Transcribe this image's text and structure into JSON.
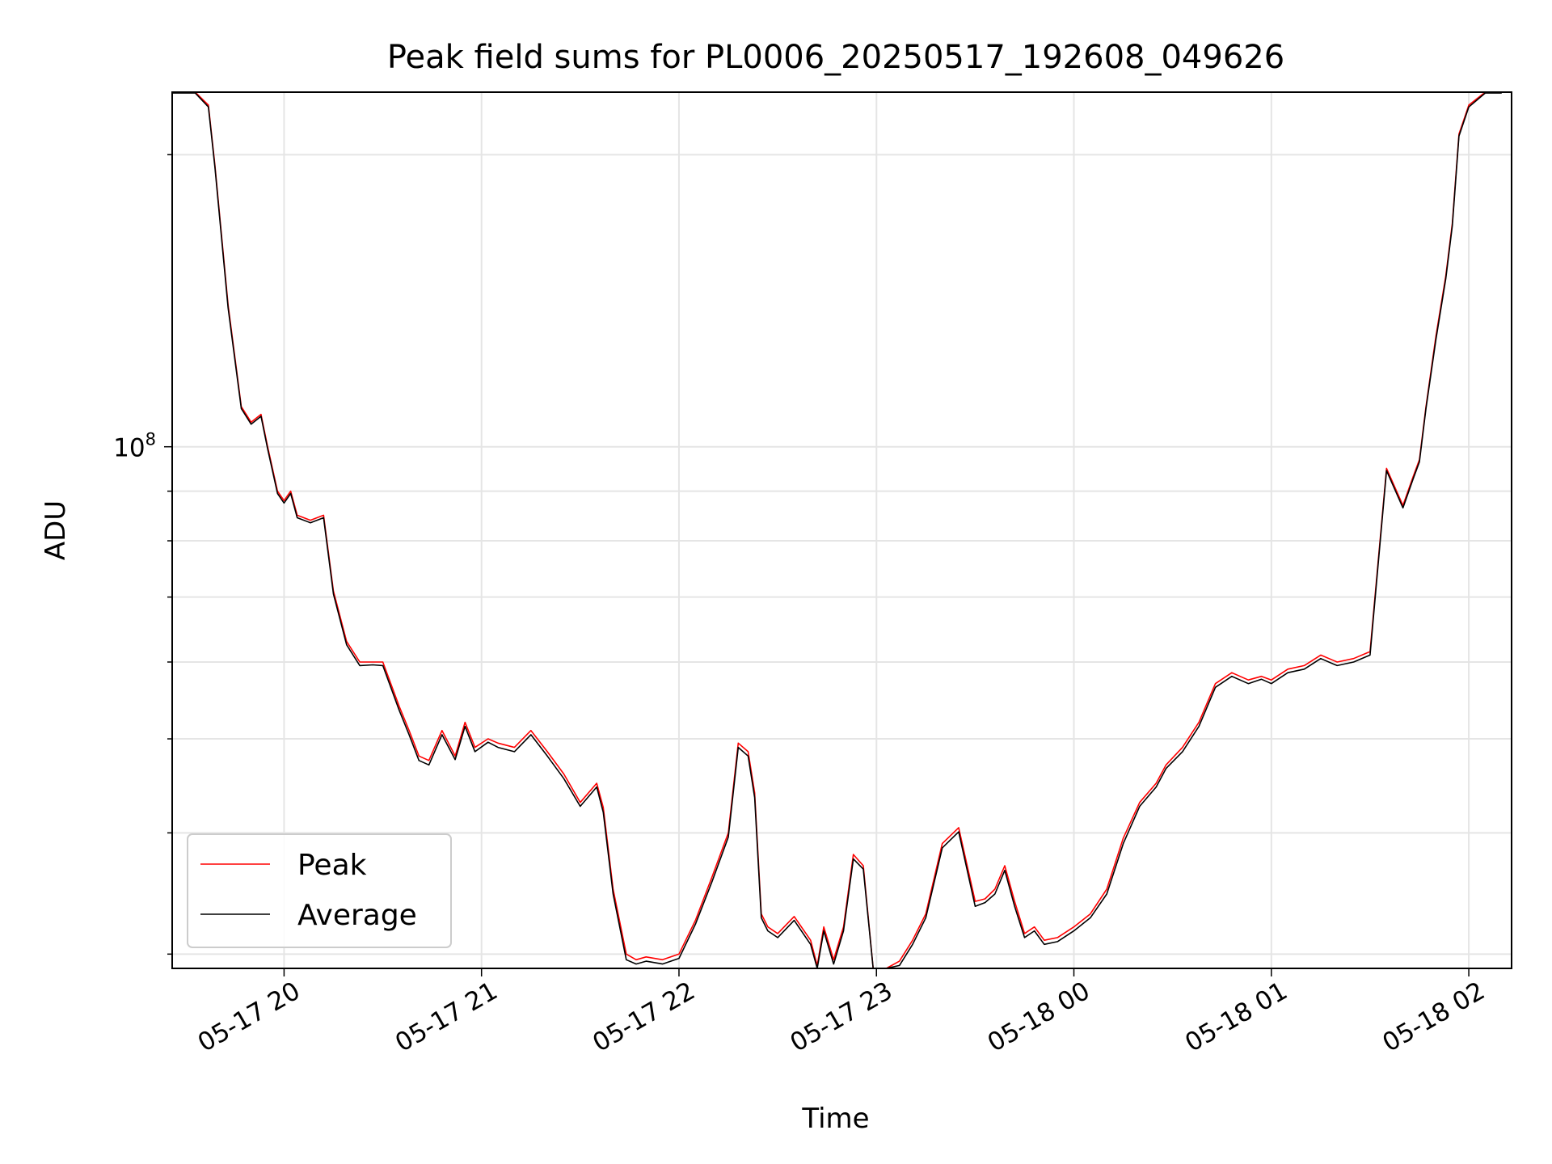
{
  "chart_data": {
    "type": "line",
    "title": "Peak field sums for PL0006_20250517_192608_049626",
    "xlabel": "Time",
    "ylabel": "ADU",
    "y_scale": "log",
    "grid": true,
    "legend_position": "lower-left",
    "xlim": [
      "2025-05-17 19:26",
      "2025-05-18 02:13"
    ],
    "ylim": [
      29000000,
      232000000
    ],
    "x_ticks": [
      "05-17 20",
      "05-17 21",
      "05-17 22",
      "05-17 23",
      "05-18 00",
      "05-18 01",
      "05-18 02"
    ],
    "y_major_tick_label": "10^8",
    "y_major_tick_value": 100000000,
    "colors": {
      "Peak": "#ff0000",
      "Average": "#000000"
    },
    "x": [
      "2025-05-17 19:26",
      "2025-05-17 19:33",
      "2025-05-17 19:37",
      "2025-05-17 19:39",
      "2025-05-17 19:43",
      "2025-05-17 19:47",
      "2025-05-17 19:50",
      "2025-05-17 19:53",
      "2025-05-17 19:55",
      "2025-05-17 19:58",
      "2025-05-17 20:00",
      "2025-05-17 20:02",
      "2025-05-17 20:04",
      "2025-05-17 20:08",
      "2025-05-17 20:12",
      "2025-05-17 20:15",
      "2025-05-17 20:19",
      "2025-05-17 20:23",
      "2025-05-17 20:27",
      "2025-05-17 20:30",
      "2025-05-17 20:35",
      "2025-05-17 20:38",
      "2025-05-17 20:41",
      "2025-05-17 20:44",
      "2025-05-17 20:48",
      "2025-05-17 20:52",
      "2025-05-17 20:55",
      "2025-05-17 20:58",
      "2025-05-17 21:02",
      "2025-05-17 21:05",
      "2025-05-17 21:10",
      "2025-05-17 21:15",
      "2025-05-17 21:20",
      "2025-05-17 21:25",
      "2025-05-17 21:30",
      "2025-05-17 21:35",
      "2025-05-17 21:37",
      "2025-05-17 21:40",
      "2025-05-17 21:44",
      "2025-05-17 21:47",
      "2025-05-17 21:50",
      "2025-05-17 21:55",
      "2025-05-17 22:00",
      "2025-05-17 22:05",
      "2025-05-17 22:10",
      "2025-05-17 22:15",
      "2025-05-17 22:18",
      "2025-05-17 22:21",
      "2025-05-17 22:23",
      "2025-05-17 22:25",
      "2025-05-17 22:27",
      "2025-05-17 22:30",
      "2025-05-17 22:35",
      "2025-05-17 22:40",
      "2025-05-17 22:42",
      "2025-05-17 22:44",
      "2025-05-17 22:47",
      "2025-05-17 22:50",
      "2025-05-17 22:53",
      "2025-05-17 22:56",
      "2025-05-17 22:59",
      "2025-05-17 23:03",
      "2025-05-17 23:07",
      "2025-05-17 23:11",
      "2025-05-17 23:15",
      "2025-05-17 23:20",
      "2025-05-17 23:25",
      "2025-05-17 23:30",
      "2025-05-17 23:33",
      "2025-05-17 23:36",
      "2025-05-17 23:39",
      "2025-05-17 23:42",
      "2025-05-17 23:45",
      "2025-05-17 23:48",
      "2025-05-17 23:51",
      "2025-05-17 23:55",
      "2025-05-18 00:00",
      "2025-05-18 00:05",
      "2025-05-18 00:10",
      "2025-05-18 00:15",
      "2025-05-18 00:20",
      "2025-05-18 00:25",
      "2025-05-18 00:28",
      "2025-05-18 00:33",
      "2025-05-18 00:38",
      "2025-05-18 00:43",
      "2025-05-18 00:48",
      "2025-05-18 00:53",
      "2025-05-18 00:57",
      "2025-05-18 01:00",
      "2025-05-18 01:05",
      "2025-05-18 01:10",
      "2025-05-18 01:15",
      "2025-05-18 01:20",
      "2025-05-18 01:25",
      "2025-05-18 01:30",
      "2025-05-18 01:35",
      "2025-05-18 01:40",
      "2025-05-18 01:43",
      "2025-05-18 01:45",
      "2025-05-18 01:47",
      "2025-05-18 01:50",
      "2025-05-18 01:53",
      "2025-05-18 01:55",
      "2025-05-18 01:57",
      "2025-05-18 02:00",
      "2025-05-18 02:05",
      "2025-05-18 02:10"
    ],
    "series": [
      {
        "name": "Peak",
        "values": [
          232000000,
          232000000,
          225000000,
          195000000,
          140000000,
          110000000,
          106000000,
          108000000,
          100000000,
          90000000,
          88000000,
          90000000,
          85000000,
          84000000,
          85000000,
          71000000,
          63000000,
          60000000,
          60000000,
          60000000,
          54000000,
          51000000,
          48000000,
          47500000,
          51000000,
          48000000,
          52000000,
          49000000,
          50000000,
          49500000,
          49000000,
          51000000,
          48500000,
          46000000,
          43000000,
          45000000,
          42500000,
          35000000,
          30000000,
          29600000,
          29800000,
          29600000,
          30000000,
          32500000,
          36000000,
          40000000,
          49500000,
          48500000,
          44000000,
          33000000,
          32000000,
          31500000,
          32800000,
          31000000,
          29200000,
          32000000,
          29600000,
          32000000,
          38000000,
          37000000,
          29000000,
          29000000,
          29500000,
          31000000,
          33000000,
          39000000,
          40500000,
          34000000,
          34200000,
          35000000,
          37000000,
          34000000,
          31500000,
          32000000,
          31000000,
          31200000,
          32000000,
          33000000,
          35000000,
          39500000,
          43000000,
          45000000,
          47000000,
          49000000,
          52000000,
          57000000,
          58500000,
          57500000,
          58000000,
          57500000,
          59000000,
          59500000,
          61000000,
          60000000,
          60500000,
          61500000,
          95000000,
          87000000,
          93000000,
          97000000,
          110000000,
          130000000,
          150000000,
          170000000,
          210000000,
          225000000,
          232000000,
          232000000
        ]
      },
      {
        "name": "Average",
        "values": [
          231500000,
          231500000,
          224000000,
          194000000,
          139000000,
          109500000,
          105500000,
          107500000,
          99500000,
          89500000,
          87500000,
          89500000,
          84500000,
          83500000,
          84500000,
          70500000,
          62500000,
          59500000,
          59600000,
          59500000,
          53500000,
          50500000,
          47500000,
          47000000,
          50500000,
          47600000,
          51500000,
          48500000,
          49600000,
          49000000,
          48500000,
          50500000,
          48000000,
          45500000,
          42600000,
          44600000,
          42000000,
          34600000,
          29600000,
          29300000,
          29500000,
          29300000,
          29700000,
          32200000,
          35600000,
          39600000,
          49000000,
          48000000,
          43500000,
          32700000,
          31700000,
          31200000,
          32500000,
          30700000,
          28900000,
          31700000,
          29300000,
          31700000,
          37600000,
          36700000,
          28800000,
          28800000,
          29200000,
          30700000,
          32700000,
          38600000,
          40100000,
          33600000,
          33900000,
          34600000,
          36600000,
          33600000,
          31200000,
          31700000,
          30700000,
          30900000,
          31700000,
          32700000,
          34600000,
          39000000,
          42600000,
          44600000,
          46600000,
          48500000,
          51500000,
          56500000,
          58000000,
          57000000,
          57600000,
          57000000,
          58500000,
          59000000,
          60500000,
          59500000,
          60000000,
          61000000,
          94500000,
          86500000,
          92500000,
          96500000,
          109500000,
          129000000,
          149000000,
          169000000,
          209000000,
          224000000,
          231500000,
          231500000
        ]
      }
    ]
  }
}
